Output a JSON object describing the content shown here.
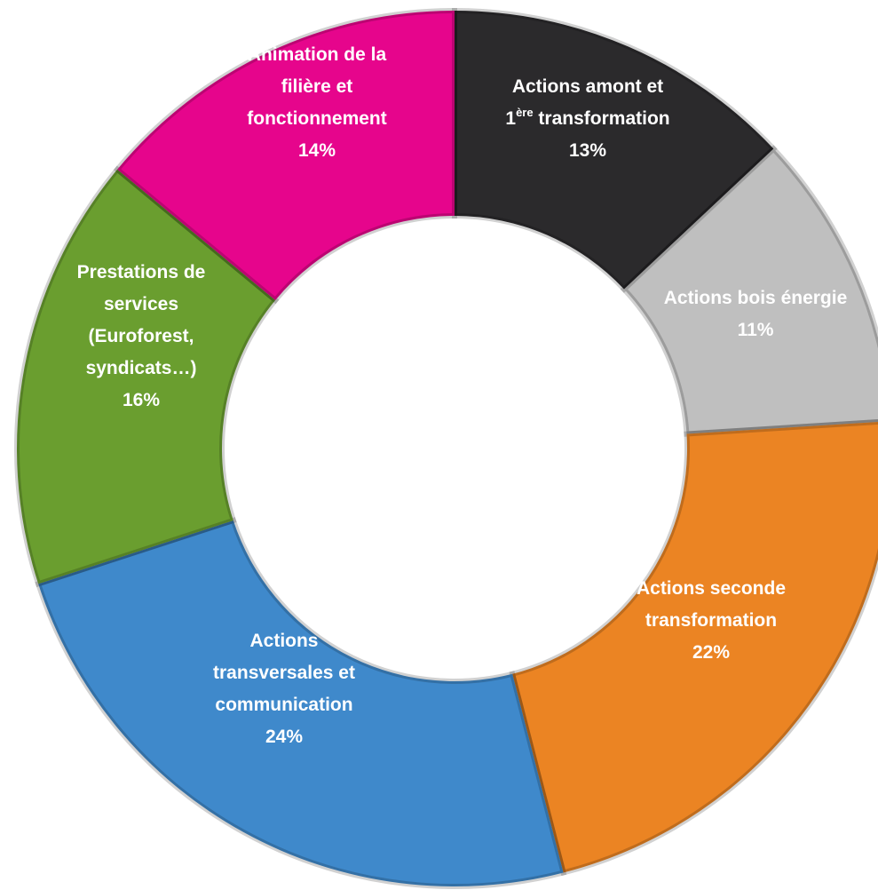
{
  "chart_data": {
    "type": "pie",
    "variant": "donut",
    "title": "",
    "legend": "none",
    "slices": [
      {
        "name": "Actions amont et 1ère transformation",
        "label_lines": [
          "Actions amont et",
          "1ère transformation"
        ],
        "percent_label": "13%",
        "value": 13,
        "color": "#2b2a2c"
      },
      {
        "name": "Actions bois énergie",
        "label_lines": [
          "Actions bois énergie"
        ],
        "percent_label": "11%",
        "value": 11,
        "color": "#bfbfbf"
      },
      {
        "name": "Actions seconde transformation",
        "label_lines": [
          "Actions seconde",
          "transformation"
        ],
        "percent_label": "22%",
        "value": 22,
        "color": "#eb8423"
      },
      {
        "name": "Actions transversales et communication",
        "label_lines": [
          "Actions",
          "transversales et",
          "communication"
        ],
        "percent_label": "24%",
        "value": 24,
        "color": "#3f89cb"
      },
      {
        "name": "Prestations de services (Euroforest, syndicats…)",
        "label_lines": [
          "Prestations de",
          "services",
          "(Euroforest,",
          "syndicats…)"
        ],
        "percent_label": "16%",
        "value": 16,
        "color": "#6a9e2f"
      },
      {
        "name": "Animation de la filière et fonctionnement",
        "label_lines": [
          "Animation de la",
          "filière et",
          "fonctionnement"
        ],
        "percent_label": "14%",
        "value": 14,
        "color": "#e6058c"
      }
    ]
  }
}
